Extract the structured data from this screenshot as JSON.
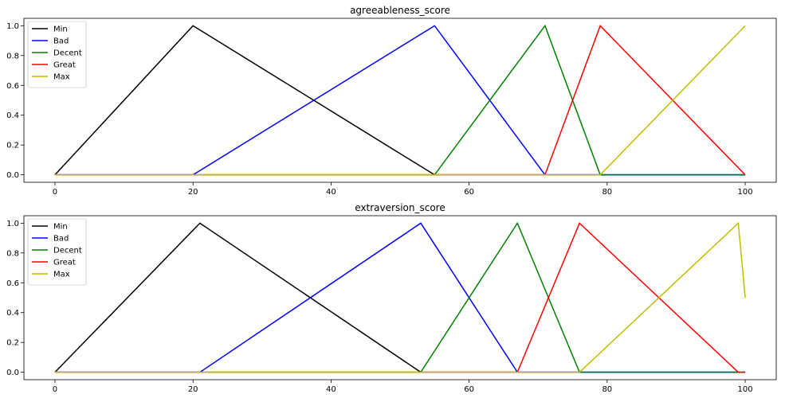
{
  "chart_data": [
    {
      "type": "line",
      "title": "agreeableness_score",
      "xlabel": "",
      "ylabel": "",
      "xlim": [
        -4.5,
        104.5
      ],
      "ylim": [
        -0.05,
        1.05
      ],
      "xticks": [
        0,
        20,
        40,
        60,
        80,
        100
      ],
      "yticks": [
        0.0,
        0.2,
        0.4,
        0.6,
        0.8,
        1.0
      ],
      "grid": false,
      "legend_position": "top-left",
      "series": [
        {
          "name": "Min",
          "color": "#000000",
          "x": [
            0,
            20,
            55,
            100
          ],
          "y": [
            0,
            1,
            0,
            0
          ]
        },
        {
          "name": "Bad",
          "color": "#0000ff",
          "x": [
            0,
            20,
            55,
            71,
            100
          ],
          "y": [
            0,
            0,
            1,
            0,
            0
          ]
        },
        {
          "name": "Decent",
          "color": "#008000",
          "x": [
            0,
            55,
            71,
            79,
            100
          ],
          "y": [
            0,
            0,
            1,
            0,
            0
          ]
        },
        {
          "name": "Great",
          "color": "#ff0000",
          "x": [
            0,
            71,
            79,
            100
          ],
          "y": [
            0,
            0,
            1,
            0
          ]
        },
        {
          "name": "Max",
          "color": "#bfbf00",
          "x": [
            0,
            79,
            100
          ],
          "y": [
            0,
            0,
            1
          ]
        }
      ]
    },
    {
      "type": "line",
      "title": "extraversion_score",
      "xlabel": "",
      "ylabel": "",
      "xlim": [
        -4.5,
        104.5
      ],
      "ylim": [
        -0.05,
        1.05
      ],
      "xticks": [
        0,
        20,
        40,
        60,
        80,
        100
      ],
      "yticks": [
        0.0,
        0.2,
        0.4,
        0.6,
        0.8,
        1.0
      ],
      "grid": false,
      "legend_position": "top-left",
      "series": [
        {
          "name": "Min",
          "color": "#000000",
          "x": [
            0,
            21,
            53,
            100
          ],
          "y": [
            0,
            1,
            0,
            0
          ]
        },
        {
          "name": "Bad",
          "color": "#0000ff",
          "x": [
            0,
            21,
            53,
            67,
            100
          ],
          "y": [
            0,
            0,
            1,
            0,
            0
          ]
        },
        {
          "name": "Decent",
          "color": "#008000",
          "x": [
            0,
            53,
            67,
            76,
            100
          ],
          "y": [
            0,
            0,
            1,
            0,
            0
          ]
        },
        {
          "name": "Great",
          "color": "#ff0000",
          "x": [
            0,
            67,
            76,
            99,
            100
          ],
          "y": [
            0,
            0,
            1,
            0,
            0
          ]
        },
        {
          "name": "Max",
          "color": "#bfbf00",
          "x": [
            0,
            76,
            99,
            100
          ],
          "y": [
            0,
            0,
            1,
            0.5
          ]
        }
      ]
    }
  ]
}
